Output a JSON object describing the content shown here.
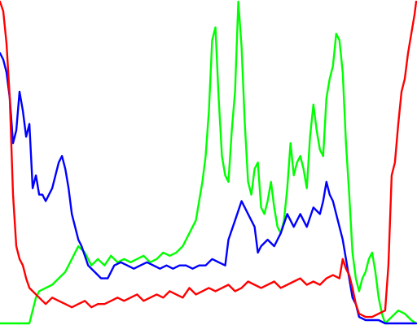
{
  "chart_data": {
    "type": "line",
    "title": "",
    "xlabel": "",
    "ylabel": "",
    "xlim": [
      0,
      255
    ],
    "ylim": [
      0,
      100
    ],
    "grid": false,
    "legend": "none",
    "background": "#ffffff",
    "series": [
      {
        "color": "#ff0000",
        "x": [
          0,
          2,
          4,
          6,
          8,
          10,
          12,
          14,
          16,
          18,
          20,
          24,
          28,
          32,
          36,
          40,
          44,
          48,
          52,
          56,
          60,
          64,
          68,
          72,
          76,
          80,
          84,
          88,
          92,
          96,
          100,
          104,
          108,
          112,
          116,
          120,
          124,
          128,
          132,
          136,
          140,
          144,
          148,
          152,
          156,
          160,
          164,
          168,
          172,
          176,
          180,
          184,
          188,
          192,
          196,
          200,
          204,
          208,
          210,
          212,
          214,
          216,
          218,
          220,
          224,
          228,
          232,
          236,
          238,
          240,
          242,
          244,
          246,
          248,
          250,
          252,
          254,
          255
        ],
        "y": [
          100,
          97,
          87,
          70,
          40,
          24,
          20,
          18,
          14,
          11,
          10,
          8,
          6,
          8,
          7,
          6,
          5,
          6,
          7,
          5,
          6,
          6,
          7,
          8,
          7,
          8,
          9,
          7,
          8,
          9,
          8,
          10,
          9,
          8,
          11,
          9,
          10,
          11,
          10,
          11,
          12,
          10,
          11,
          13,
          12,
          11,
          12,
          13,
          11,
          12,
          13,
          14,
          12,
          13,
          12,
          14,
          15,
          14,
          20,
          17,
          15,
          11,
          6,
          3,
          2,
          2,
          3,
          4,
          18,
          46,
          50,
          62,
          72,
          76,
          84,
          90,
          96,
          100
        ]
      },
      {
        "color": "#0000ff",
        "x": [
          0,
          2,
          4,
          6,
          8,
          10,
          12,
          14,
          16,
          18,
          20,
          22,
          24,
          26,
          28,
          30,
          32,
          34,
          36,
          38,
          40,
          42,
          44,
          46,
          48,
          50,
          54,
          58,
          62,
          66,
          70,
          74,
          78,
          82,
          86,
          90,
          94,
          98,
          102,
          106,
          110,
          114,
          118,
          122,
          126,
          130,
          134,
          138,
          140,
          144,
          148,
          152,
          156,
          158,
          160,
          164,
          168,
          172,
          176,
          180,
          184,
          188,
          192,
          196,
          198,
          200,
          202,
          204,
          206,
          208,
          210,
          212,
          214,
          216,
          218,
          220,
          224,
          228,
          232,
          236,
          240,
          244,
          248,
          252,
          255
        ],
        "y": [
          84,
          82,
          78,
          70,
          56,
          60,
          72,
          66,
          58,
          62,
          42,
          46,
          40,
          40,
          38,
          40,
          42,
          46,
          50,
          52,
          48,
          42,
          34,
          30,
          26,
          24,
          18,
          16,
          14,
          14,
          18,
          19,
          18,
          17,
          18,
          19,
          18,
          17,
          18,
          17,
          18,
          18,
          17,
          18,
          18,
          20,
          19,
          18,
          26,
          32,
          38,
          34,
          30,
          22,
          24,
          26,
          24,
          28,
          34,
          30,
          34,
          30,
          36,
          34,
          38,
          44,
          40,
          38,
          34,
          30,
          26,
          20,
          14,
          8,
          6,
          2,
          1,
          1,
          1,
          0,
          0,
          0,
          0,
          0,
          0
        ]
      },
      {
        "color": "#00ff00",
        "x": [
          0,
          8,
          14,
          18,
          20,
          22,
          24,
          28,
          32,
          36,
          40,
          44,
          48,
          52,
          56,
          60,
          64,
          68,
          72,
          76,
          80,
          84,
          88,
          92,
          96,
          100,
          104,
          108,
          112,
          116,
          120,
          122,
          124,
          126,
          128,
          130,
          132,
          134,
          136,
          138,
          140,
          142,
          144,
          146,
          148,
          150,
          152,
          154,
          156,
          158,
          160,
          162,
          164,
          166,
          168,
          170,
          172,
          174,
          176,
          178,
          180,
          182,
          184,
          186,
          188,
          190,
          192,
          194,
          196,
          198,
          200,
          202,
          204,
          206,
          208,
          210,
          212,
          214,
          216,
          218,
          220,
          222,
          224,
          226,
          228,
          230,
          232,
          234,
          236,
          238,
          240,
          244,
          248,
          252,
          255
        ],
        "y": [
          0,
          0,
          0,
          0,
          4,
          8,
          10,
          11,
          12,
          14,
          16,
          20,
          24,
          22,
          18,
          20,
          18,
          21,
          19,
          20,
          19,
          20,
          21,
          19,
          20,
          22,
          21,
          22,
          24,
          28,
          32,
          38,
          44,
          52,
          66,
          88,
          92,
          70,
          52,
          46,
          44,
          60,
          72,
          100,
          86,
          62,
          44,
          40,
          48,
          50,
          36,
          34,
          38,
          44,
          36,
          30,
          28,
          32,
          42,
          56,
          46,
          50,
          52,
          48,
          42,
          58,
          68,
          60,
          54,
          52,
          70,
          76,
          80,
          90,
          88,
          78,
          56,
          40,
          22,
          14,
          10,
          14,
          16,
          20,
          22,
          16,
          8,
          3,
          0,
          1,
          2,
          4,
          3,
          1,
          0
        ]
      }
    ]
  }
}
